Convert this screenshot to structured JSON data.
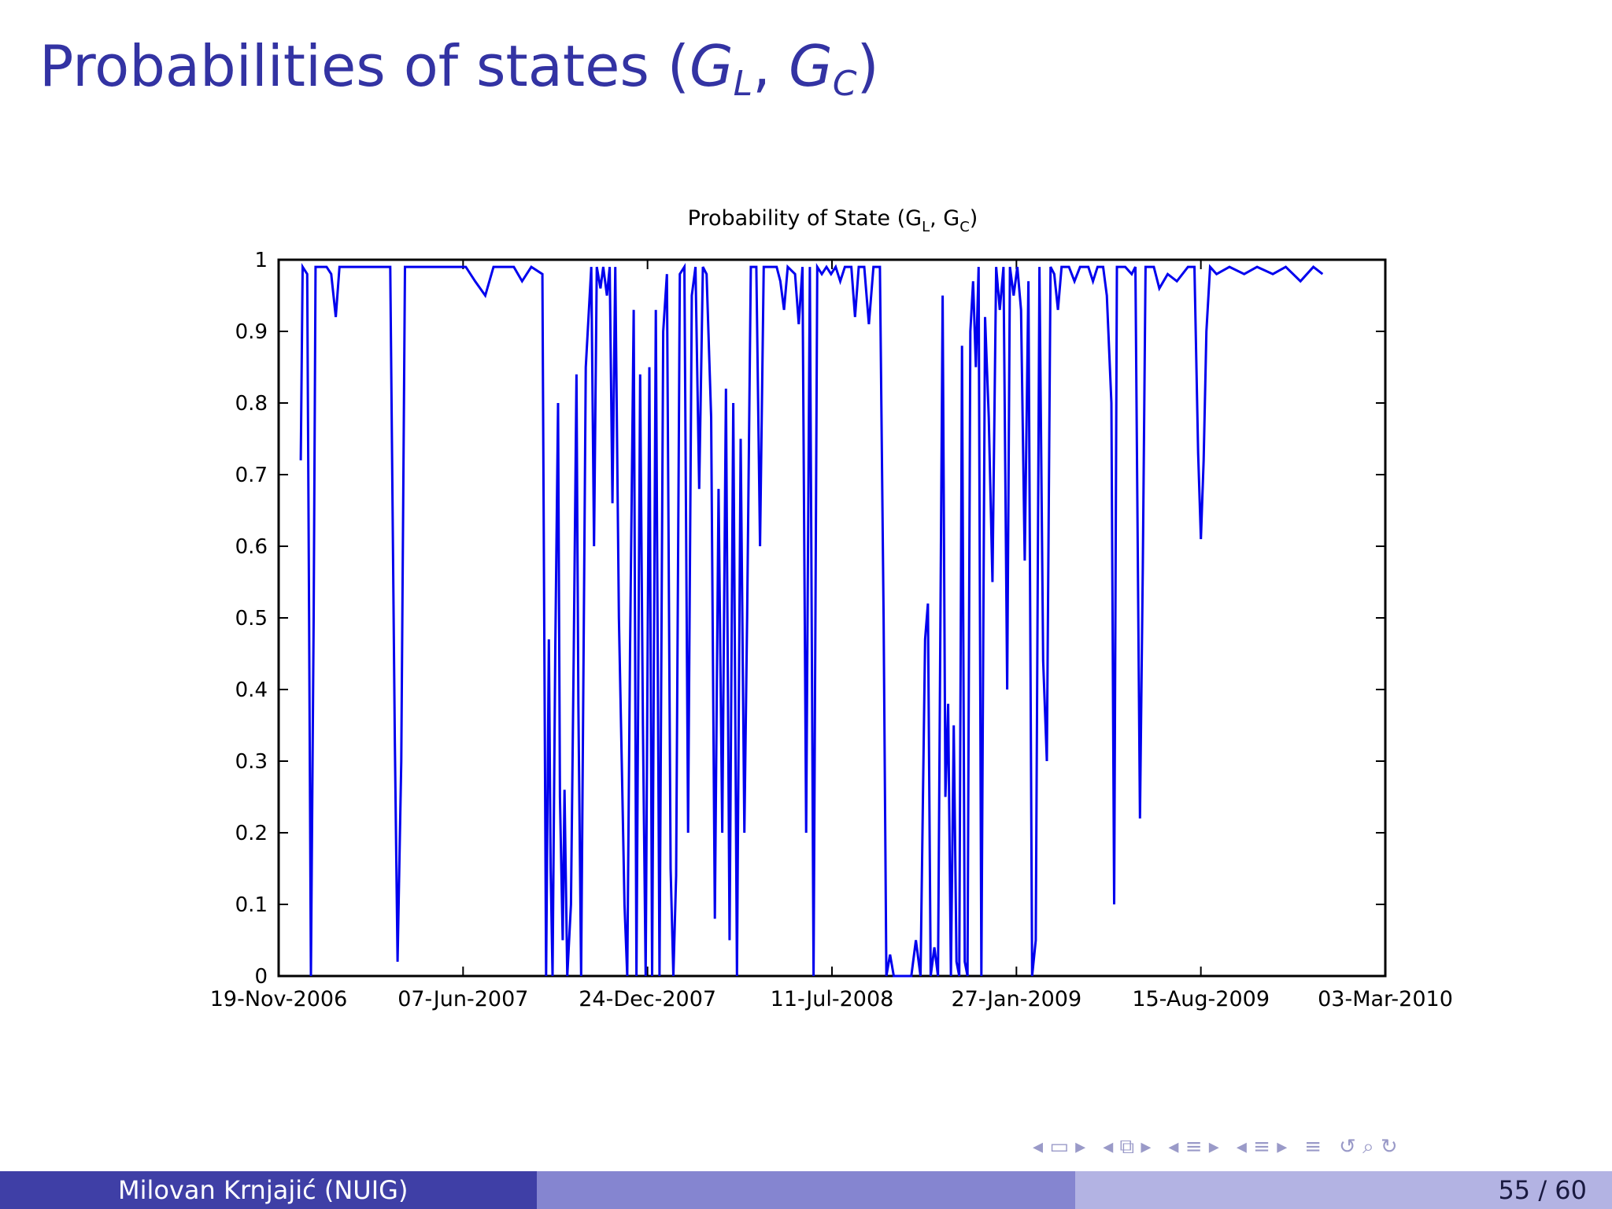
{
  "slide": {
    "title_prefix": "Probabilities of states (",
    "title_g1": "G",
    "title_g1_sub": "L",
    "title_sep": ", ",
    "title_g2": "G",
    "title_g2_sub": "C",
    "title_suffix": ")"
  },
  "footer": {
    "author": "Milovan Krnjajić  (NUIG)",
    "page": "55 / 60"
  },
  "nav": {
    "icons": [
      "nav-first-icon",
      "nav-frame-icon",
      "nav-section-icon",
      "nav-subsection-icon",
      "nav-toc-icon",
      "nav-search-icon"
    ]
  },
  "colors": {
    "title": "#3333a3",
    "series": "#0000ee",
    "footer_dark": "#3f3fa6",
    "footer_mid": "#8585d0",
    "footer_light": "#b3b3e3"
  },
  "chart_data": {
    "type": "line",
    "title_main": "Probability of State (G",
    "title_sub1": "L",
    "title_mid": ", G",
    "title_sub2": "C",
    "title_end": ")",
    "xlabel": "",
    "ylabel": "",
    "ylim": [
      0,
      1
    ],
    "xlim": [
      "2006-11-19",
      "2010-03-03"
    ],
    "yticks": [
      "0",
      "0.1",
      "0.2",
      "0.3",
      "0.4",
      "0.5",
      "0.6",
      "0.7",
      "0.8",
      "0.9",
      "1"
    ],
    "xticks": [
      "19-Nov-2006",
      "07-Jun-2007",
      "24-Dec-2007",
      "11-Jul-2008",
      "27-Jan-2009",
      "15-Aug-2009",
      "03-Mar-2010"
    ],
    "grid": false,
    "series": [
      {
        "points": [
          [
            "2006-12-13",
            0.72
          ],
          [
            "2006-12-15",
            0.99
          ],
          [
            "2006-12-20",
            0.98
          ],
          [
            "2006-12-22",
            0.5
          ],
          [
            "2006-12-24",
            0.0
          ],
          [
            "2006-12-27",
            0.5
          ],
          [
            "2006-12-29",
            0.99
          ],
          [
            "2007-01-10",
            0.99
          ],
          [
            "2007-01-15",
            0.98
          ],
          [
            "2007-01-20",
            0.92
          ],
          [
            "2007-01-24",
            0.99
          ],
          [
            "2007-03-20",
            0.99
          ],
          [
            "2007-03-25",
            0.33
          ],
          [
            "2007-03-28",
            0.02
          ],
          [
            "2007-04-01",
            0.3
          ],
          [
            "2007-04-05",
            0.99
          ],
          [
            "2007-06-10",
            0.99
          ],
          [
            "2007-06-20",
            0.97
          ],
          [
            "2007-07-01",
            0.95
          ],
          [
            "2007-07-10",
            0.99
          ],
          [
            "2007-08-01",
            0.99
          ],
          [
            "2007-08-10",
            0.97
          ],
          [
            "2007-08-20",
            0.99
          ],
          [
            "2007-09-01",
            0.98
          ],
          [
            "2007-09-05",
            0.0
          ],
          [
            "2007-09-08",
            0.47
          ],
          [
            "2007-09-10",
            0.15
          ],
          [
            "2007-09-12",
            0.0
          ],
          [
            "2007-09-15",
            0.46
          ],
          [
            "2007-09-18",
            0.8
          ],
          [
            "2007-09-20",
            0.25
          ],
          [
            "2007-09-23",
            0.05
          ],
          [
            "2007-09-25",
            0.26
          ],
          [
            "2007-09-28",
            0.0
          ],
          [
            "2007-10-02",
            0.1
          ],
          [
            "2007-10-05",
            0.45
          ],
          [
            "2007-10-08",
            0.84
          ],
          [
            "2007-10-10",
            0.38
          ],
          [
            "2007-10-13",
            0.0
          ],
          [
            "2007-10-18",
            0.85
          ],
          [
            "2007-10-21",
            0.92
          ],
          [
            "2007-10-24",
            0.99
          ],
          [
            "2007-10-27",
            0.6
          ],
          [
            "2007-10-30",
            0.99
          ],
          [
            "2007-11-03",
            0.96
          ],
          [
            "2007-11-06",
            0.99
          ],
          [
            "2007-11-10",
            0.95
          ],
          [
            "2007-11-13",
            0.99
          ],
          [
            "2007-11-16",
            0.66
          ],
          [
            "2007-11-19",
            0.99
          ],
          [
            "2007-11-23",
            0.5
          ],
          [
            "2007-11-26",
            0.3
          ],
          [
            "2007-11-29",
            0.1
          ],
          [
            "2007-12-02",
            0.0
          ],
          [
            "2007-12-05",
            0.45
          ],
          [
            "2007-12-09",
            0.93
          ],
          [
            "2007-12-12",
            0.0
          ],
          [
            "2007-12-16",
            0.84
          ],
          [
            "2007-12-19",
            0.35
          ],
          [
            "2007-12-22",
            0.0
          ],
          [
            "2007-12-26",
            0.85
          ],
          [
            "2007-12-29",
            0.0
          ],
          [
            "2008-01-02",
            0.93
          ],
          [
            "2008-01-06",
            0.0
          ],
          [
            "2008-01-10",
            0.9
          ],
          [
            "2008-01-14",
            0.98
          ],
          [
            "2008-01-18",
            0.15
          ],
          [
            "2008-01-21",
            0.0
          ],
          [
            "2008-01-24",
            0.14
          ],
          [
            "2008-01-28",
            0.98
          ],
          [
            "2008-02-02",
            0.99
          ],
          [
            "2008-02-06",
            0.2
          ],
          [
            "2008-02-10",
            0.95
          ],
          [
            "2008-02-14",
            0.99
          ],
          [
            "2008-02-18",
            0.68
          ],
          [
            "2008-02-22",
            0.99
          ],
          [
            "2008-02-26",
            0.98
          ],
          [
            "2008-03-02",
            0.78
          ],
          [
            "2008-03-06",
            0.08
          ],
          [
            "2008-03-10",
            0.68
          ],
          [
            "2008-03-14",
            0.2
          ],
          [
            "2008-03-18",
            0.82
          ],
          [
            "2008-03-22",
            0.05
          ],
          [
            "2008-03-26",
            0.8
          ],
          [
            "2008-03-30",
            0.0
          ],
          [
            "2008-04-03",
            0.75
          ],
          [
            "2008-04-07",
            0.2
          ],
          [
            "2008-04-10",
            0.5
          ],
          [
            "2008-04-14",
            0.99
          ],
          [
            "2008-04-20",
            0.99
          ],
          [
            "2008-04-24",
            0.6
          ],
          [
            "2008-04-28",
            0.99
          ],
          [
            "2008-05-05",
            0.99
          ],
          [
            "2008-05-12",
            0.99
          ],
          [
            "2008-05-16",
            0.97
          ],
          [
            "2008-05-20",
            0.93
          ],
          [
            "2008-05-24",
            0.99
          ],
          [
            "2008-06-01",
            0.98
          ],
          [
            "2008-06-05",
            0.91
          ],
          [
            "2008-06-09",
            0.99
          ],
          [
            "2008-06-13",
            0.2
          ],
          [
            "2008-06-17",
            0.99
          ],
          [
            "2008-06-21",
            0.0
          ],
          [
            "2008-06-25",
            0.99
          ],
          [
            "2008-06-30",
            0.98
          ],
          [
            "2008-07-05",
            0.99
          ],
          [
            "2008-07-10",
            0.98
          ],
          [
            "2008-07-15",
            0.99
          ],
          [
            "2008-07-20",
            0.97
          ],
          [
            "2008-07-25",
            0.99
          ],
          [
            "2008-08-01",
            0.99
          ],
          [
            "2008-08-05",
            0.92
          ],
          [
            "2008-08-09",
            0.99
          ],
          [
            "2008-08-15",
            0.99
          ],
          [
            "2008-08-20",
            0.91
          ],
          [
            "2008-08-25",
            0.99
          ],
          [
            "2008-09-01",
            0.99
          ],
          [
            "2008-09-05",
            0.5
          ],
          [
            "2008-09-08",
            0.0
          ],
          [
            "2008-09-12",
            0.03
          ],
          [
            "2008-09-16",
            0.0
          ],
          [
            "2008-10-05",
            0.0
          ],
          [
            "2008-10-10",
            0.05
          ],
          [
            "2008-10-15",
            0.0
          ],
          [
            "2008-10-20",
            0.47
          ],
          [
            "2008-10-23",
            0.52
          ],
          [
            "2008-10-26",
            0.0
          ],
          [
            "2008-10-30",
            0.04
          ],
          [
            "2008-11-03",
            0.0
          ],
          [
            "2008-11-08",
            0.95
          ],
          [
            "2008-11-11",
            0.25
          ],
          [
            "2008-11-14",
            0.38
          ],
          [
            "2008-11-17",
            0.0
          ],
          [
            "2008-11-20",
            0.35
          ],
          [
            "2008-11-23",
            0.02
          ],
          [
            "2008-11-26",
            0.0
          ],
          [
            "2008-11-29",
            0.88
          ],
          [
            "2008-12-02",
            0.02
          ],
          [
            "2008-12-05",
            0.0
          ],
          [
            "2008-12-08",
            0.9
          ],
          [
            "2008-12-11",
            0.97
          ],
          [
            "2008-12-14",
            0.85
          ],
          [
            "2008-12-17",
            0.99
          ],
          [
            "2008-12-20",
            0.0
          ],
          [
            "2008-12-24",
            0.92
          ],
          [
            "2008-12-28",
            0.78
          ],
          [
            "2009-01-01",
            0.55
          ],
          [
            "2009-01-05",
            0.99
          ],
          [
            "2009-01-09",
            0.93
          ],
          [
            "2009-01-13",
            0.99
          ],
          [
            "2009-01-17",
            0.4
          ],
          [
            "2009-01-20",
            0.99
          ],
          [
            "2009-01-24",
            0.95
          ],
          [
            "2009-01-28",
            0.99
          ],
          [
            "2009-02-01",
            0.93
          ],
          [
            "2009-02-05",
            0.58
          ],
          [
            "2009-02-09",
            0.97
          ],
          [
            "2009-02-13",
            0.0
          ],
          [
            "2009-02-17",
            0.05
          ],
          [
            "2009-02-21",
            0.99
          ],
          [
            "2009-02-25",
            0.44
          ],
          [
            "2009-03-01",
            0.3
          ],
          [
            "2009-03-05",
            0.99
          ],
          [
            "2009-03-09",
            0.98
          ],
          [
            "2009-03-13",
            0.93
          ],
          [
            "2009-03-17",
            0.99
          ],
          [
            "2009-03-25",
            0.99
          ],
          [
            "2009-03-31",
            0.97
          ],
          [
            "2009-04-06",
            0.99
          ],
          [
            "2009-04-15",
            0.99
          ],
          [
            "2009-04-20",
            0.97
          ],
          [
            "2009-04-25",
            0.99
          ],
          [
            "2009-05-01",
            0.99
          ],
          [
            "2009-05-05",
            0.95
          ],
          [
            "2009-05-10",
            0.8
          ],
          [
            "2009-05-13",
            0.1
          ],
          [
            "2009-05-16",
            0.99
          ],
          [
            "2009-05-25",
            0.99
          ],
          [
            "2009-06-01",
            0.98
          ],
          [
            "2009-06-05",
            0.99
          ],
          [
            "2009-06-10",
            0.22
          ],
          [
            "2009-06-13",
            0.57
          ],
          [
            "2009-06-16",
            0.99
          ],
          [
            "2009-06-25",
            0.99
          ],
          [
            "2009-07-01",
            0.96
          ],
          [
            "2009-07-10",
            0.98
          ],
          [
            "2009-07-20",
            0.97
          ],
          [
            "2009-08-01",
            0.99
          ],
          [
            "2009-08-08",
            0.99
          ],
          [
            "2009-08-12",
            0.73
          ],
          [
            "2009-08-15",
            0.61
          ],
          [
            "2009-08-18",
            0.72
          ],
          [
            "2009-08-21",
            0.9
          ],
          [
            "2009-08-25",
            0.99
          ],
          [
            "2009-09-01",
            0.98
          ],
          [
            "2009-09-15",
            0.99
          ],
          [
            "2009-10-01",
            0.98
          ],
          [
            "2009-10-15",
            0.99
          ],
          [
            "2009-11-01",
            0.98
          ],
          [
            "2009-11-15",
            0.99
          ],
          [
            "2009-12-01",
            0.97
          ],
          [
            "2009-12-15",
            0.99
          ],
          [
            "2009-12-25",
            0.98
          ]
        ]
      }
    ]
  }
}
